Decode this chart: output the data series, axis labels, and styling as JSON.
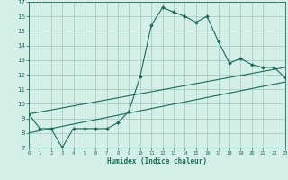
{
  "xlabel": "Humidex (Indice chaleur)",
  "xlim": [
    0,
    23
  ],
  "ylim": [
    7,
    17
  ],
  "xticks": [
    0,
    1,
    2,
    3,
    4,
    5,
    6,
    7,
    8,
    9,
    10,
    11,
    12,
    13,
    14,
    15,
    16,
    17,
    18,
    19,
    20,
    21,
    22,
    23
  ],
  "yticks": [
    7,
    8,
    9,
    10,
    11,
    12,
    13,
    14,
    15,
    16,
    17
  ],
  "bg_color": "#d4eee8",
  "plot_bg_color": "#d4eee8",
  "grid_color": "#a0c8bc",
  "line_color": "#1a6b5a",
  "line1_x": [
    0,
    1,
    2,
    3,
    4,
    5,
    6,
    7,
    8,
    9,
    10,
    11,
    12,
    13,
    14,
    15,
    16,
    17,
    18,
    19,
    20,
    21,
    22,
    23
  ],
  "line1_y": [
    9.3,
    8.3,
    8.3,
    7.0,
    8.3,
    8.3,
    8.3,
    8.3,
    8.7,
    9.5,
    11.9,
    15.4,
    16.6,
    16.3,
    16.0,
    15.6,
    16.0,
    14.3,
    12.8,
    13.1,
    12.7,
    12.5,
    12.5,
    11.8
  ],
  "line2_x": [
    0,
    23
  ],
  "line2_y": [
    9.3,
    12.5
  ],
  "line3_x": [
    0,
    23
  ],
  "line3_y": [
    8.0,
    11.5
  ],
  "markersize": 2.0,
  "linewidth": 0.8
}
